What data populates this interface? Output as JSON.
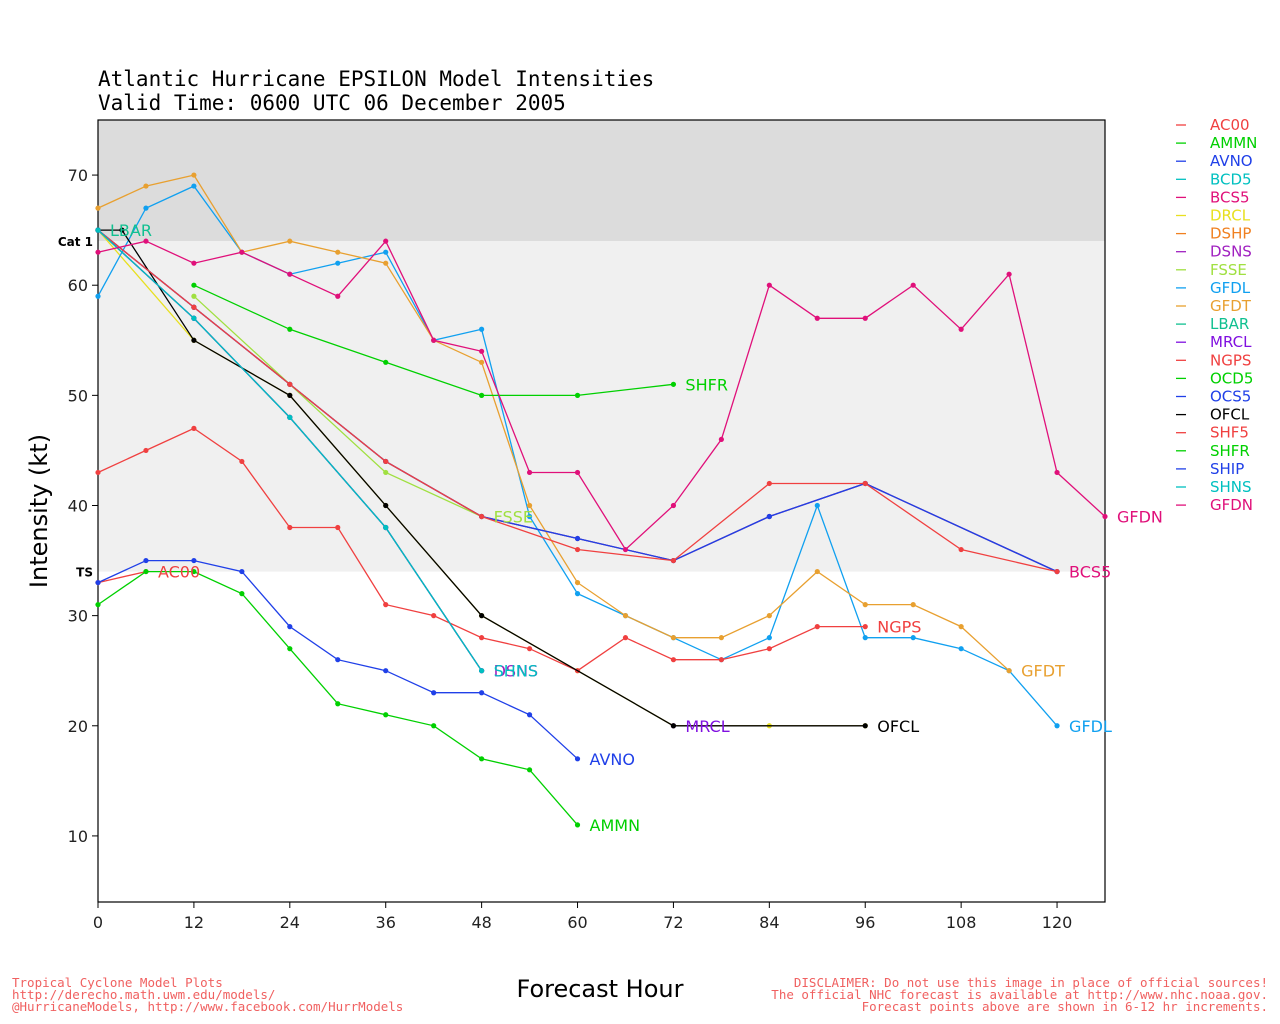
{
  "chart_data": {
    "type": "line",
    "title": "Atlantic Hurricane EPSILON Model Intensities",
    "subtitle": "Valid Time: 0600 UTC 06 December 2005",
    "xlabel": "Forecast Hour",
    "ylabel": "Intensity (kt)",
    "xlim": [
      0,
      126
    ],
    "ylim": [
      4,
      75
    ],
    "xticks": [
      0,
      12,
      24,
      36,
      48,
      60,
      72,
      84,
      96,
      108,
      120
    ],
    "yticks": [
      10,
      20,
      30,
      40,
      50,
      60,
      70
    ],
    "bands": [
      {
        "label": "Cat 1",
        "from": 64,
        "to": 75,
        "color": "#dcdcdc"
      },
      {
        "label": "TS",
        "from": 34,
        "to": 64,
        "color": "#f0f0f0"
      }
    ],
    "legend_position": "right",
    "series": [
      {
        "name": "AC00",
        "color": "#f04040",
        "label_at_end": true,
        "x": [
          0,
          6
        ],
        "y": [
          33,
          34
        ]
      },
      {
        "name": "AMMN",
        "color": "#00d000",
        "label_at_end": true,
        "x": [
          0,
          6,
          12,
          18,
          24,
          30,
          36,
          42,
          48,
          54,
          60
        ],
        "y": [
          31,
          34,
          34,
          32,
          27,
          22,
          21,
          20,
          17,
          16,
          11
        ]
      },
      {
        "name": "AVNO",
        "color": "#2040e8",
        "label_at_end": true,
        "x": [
          0,
          6,
          12,
          18,
          24,
          30,
          36,
          42,
          48,
          54,
          60
        ],
        "y": [
          33,
          35,
          35,
          34,
          29,
          26,
          25,
          23,
          23,
          21,
          17
        ]
      },
      {
        "name": "BCD5",
        "color": "#00c0c0",
        "label_at_end": false,
        "x": [
          0,
          12,
          24,
          36,
          48,
          60,
          72,
          84,
          96,
          120
        ],
        "y": [
          65,
          58,
          51,
          44,
          39,
          37,
          35,
          39,
          42,
          34
        ]
      },
      {
        "name": "BCS5",
        "color": "#e0107a",
        "label_at_end": true,
        "x": [
          0,
          12,
          24,
          36,
          48,
          60,
          72,
          84,
          96,
          120
        ],
        "y": [
          65,
          58,
          51,
          44,
          39,
          37,
          35,
          39,
          42,
          34
        ]
      },
      {
        "name": "DRCL",
        "color": "#e8e020",
        "label_at_end": false,
        "x": [
          0,
          12,
          24,
          36,
          48,
          60,
          72,
          84,
          96
        ],
        "y": [
          65,
          55,
          50,
          40,
          30,
          25,
          20,
          20,
          20
        ]
      },
      {
        "name": "DSHP",
        "color": "#f08020",
        "label_at_end": false,
        "x": [
          0,
          12,
          24,
          36,
          48
        ],
        "y": [
          65,
          57,
          48,
          38,
          25
        ]
      },
      {
        "name": "DSNS",
        "color": "#a020c0",
        "label_at_end": true,
        "x": [
          0,
          12,
          24,
          36,
          48
        ],
        "y": [
          65,
          57,
          48,
          38,
          25
        ]
      },
      {
        "name": "FSSE",
        "color": "#a0e040",
        "label_at_end": true,
        "x": [
          12,
          24,
          36,
          48
        ],
        "y": [
          59,
          51,
          43,
          39
        ]
      },
      {
        "name": "GFDL",
        "color": "#10a0f0",
        "label_at_end": true,
        "x": [
          0,
          6,
          12,
          18,
          24,
          30,
          36,
          42,
          48,
          54,
          60,
          66,
          72,
          78,
          84,
          90,
          96,
          102,
          108,
          114,
          120
        ],
        "y": [
          59,
          67,
          69,
          63,
          61,
          62,
          63,
          55,
          56,
          39,
          32,
          30,
          28,
          26,
          28,
          40,
          28,
          28,
          27,
          25,
          20
        ]
      },
      {
        "name": "GFDT",
        "color": "#e8a030",
        "label_at_end": true,
        "x": [
          0,
          6,
          12,
          18,
          24,
          30,
          36,
          42,
          48,
          54,
          60,
          66,
          72,
          78,
          84,
          90,
          96,
          102,
          108,
          114
        ],
        "y": [
          67,
          69,
          70,
          63,
          64,
          63,
          62,
          55,
          53,
          40,
          33,
          30,
          28,
          28,
          30,
          34,
          31,
          31,
          29,
          25
        ]
      },
      {
        "name": "LBAR",
        "color": "#10c090",
        "label_at_end": true,
        "x": [
          0
        ],
        "y": [
          65
        ]
      },
      {
        "name": "MRCL",
        "color": "#8010e0",
        "label_at_end": true,
        "x": [
          72
        ],
        "y": [
          20
        ]
      },
      {
        "name": "NGPS",
        "color": "#f04040",
        "label_at_end": true,
        "x": [
          0,
          6,
          12,
          18,
          24,
          30,
          36,
          42,
          48,
          54,
          60,
          66,
          72,
          78,
          84,
          90,
          96
        ],
        "y": [
          43,
          45,
          47,
          44,
          38,
          38,
          31,
          30,
          28,
          27,
          25,
          28,
          26,
          26,
          27,
          29,
          29
        ]
      },
      {
        "name": "OCD5",
        "color": "#00d000",
        "label_at_end": false,
        "x": [
          0
        ],
        "y": [
          65
        ]
      },
      {
        "name": "OCS5",
        "color": "#2040e8",
        "label_at_end": false,
        "x": [
          0,
          12,
          24,
          36,
          48,
          60,
          72,
          84,
          96,
          120
        ],
        "y": [
          65,
          58,
          51,
          44,
          39,
          37,
          35,
          39,
          42,
          34
        ]
      },
      {
        "name": "OFCL",
        "color": "#000000",
        "label_at_end": true,
        "x": [
          0,
          3,
          12,
          24,
          36,
          48,
          72,
          96
        ],
        "y": [
          65,
          65,
          55,
          50,
          40,
          30,
          20,
          20
        ]
      },
      {
        "name": "SHF5",
        "color": "#f04040",
        "label_at_end": false,
        "x": [
          0,
          12,
          24,
          36,
          48,
          60,
          72,
          84,
          96,
          108,
          120
        ],
        "y": [
          65,
          58,
          51,
          44,
          39,
          36,
          35,
          42,
          42,
          36,
          34
        ]
      },
      {
        "name": "SHFR",
        "color": "#00d000",
        "label_at_end": true,
        "x": [
          12,
          24,
          36,
          48,
          60,
          72
        ],
        "y": [
          60,
          56,
          53,
          50,
          50,
          51
        ]
      },
      {
        "name": "SHIP",
        "color": "#2040e8",
        "label_at_end": false,
        "x": [
          0,
          12,
          24,
          36,
          48
        ],
        "y": [
          65,
          57,
          48,
          38,
          25
        ]
      },
      {
        "name": "SHNS",
        "color": "#00c0c0",
        "label_at_end": true,
        "x": [
          0,
          12,
          24,
          36,
          48
        ],
        "y": [
          65,
          57,
          48,
          38,
          25
        ]
      },
      {
        "name": "GFDN",
        "color": "#e0107a",
        "label_at_end": true,
        "x": [
          0,
          6,
          12,
          18,
          24,
          30,
          36,
          42,
          48,
          54,
          60,
          66,
          72,
          78,
          84,
          90,
          96,
          102,
          108,
          114,
          120,
          126
        ],
        "y": [
          63,
          64,
          62,
          63,
          61,
          59,
          64,
          55,
          54,
          43,
          43,
          36,
          40,
          46,
          60,
          57,
          57,
          60,
          56,
          61,
          43,
          39
        ]
      }
    ]
  },
  "footer": {
    "left_lines": [
      "Tropical Cyclone Model Plots",
      "http://derecho.math.uwm.edu/models/",
      "@HurricaneModels, http://www.facebook.com/HurrModels"
    ],
    "right_lines": [
      "DISCLAIMER: Do not use this image in place of official sources!",
      "The official NHC forecast is available at http://www.nhc.noaa.gov.",
      "Forecast points above are shown in 6-12 hr increments."
    ]
  }
}
